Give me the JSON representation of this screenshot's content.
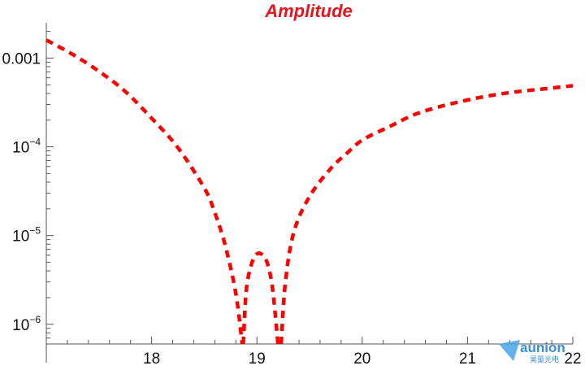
{
  "chart_data": {
    "type": "line",
    "title": "Amplitude",
    "xlabel": "",
    "ylabel": "",
    "yscale": "log",
    "xlim": [
      17.0,
      22.0
    ],
    "ylim": [
      6e-07,
      0.0025
    ],
    "x_ticks": [
      {
        "value": 18,
        "label": "18"
      },
      {
        "value": 19,
        "label": "19"
      },
      {
        "value": 20,
        "label": "20"
      },
      {
        "value": 21,
        "label": "21"
      },
      {
        "value": 22,
        "label": "22"
      }
    ],
    "y_ticks": [
      {
        "value": 0.001,
        "base": "0.001",
        "exp": ""
      },
      {
        "value": 0.0001,
        "base": "10",
        "exp": "−4"
      },
      {
        "value": 1e-05,
        "base": "10",
        "exp": "−5"
      },
      {
        "value": 1e-06,
        "base": "10",
        "exp": "−6"
      }
    ],
    "series": [
      {
        "name": "",
        "color": "#ff0000",
        "style": "dashed",
        "segments": [
          [
            [
              17.0,
              0.0016
            ],
            [
              17.25,
              0.0011
            ],
            [
              17.5,
              0.00071
            ],
            [
              17.75,
              0.00042
            ],
            [
              18.0,
              0.00021
            ],
            [
              18.25,
              9.75e-05
            ],
            [
              18.5,
              3.44e-05
            ],
            [
              18.6,
              1.81e-05
            ],
            [
              18.7,
              7.67e-06
            ],
            [
              18.8,
              2.22e-06
            ],
            [
              18.86,
              6e-07
            ]
          ],
          [
            [
              18.87,
              6e-07
            ],
            [
              18.9,
              2.46e-06
            ],
            [
              18.95,
              4.83e-06
            ],
            [
              19.0,
              6.2e-06
            ],
            [
              19.05,
              6.08e-06
            ],
            [
              19.1,
              4.83e-06
            ],
            [
              19.15,
              2.46e-06
            ],
            [
              19.2,
              6e-07
            ]
          ],
          [
            [
              19.23,
              6e-07
            ],
            [
              19.27,
              2.93e-06
            ],
            [
              19.35,
              1.09e-05
            ],
            [
              19.5,
              2.76e-05
            ],
            [
              19.7,
              5.68e-05
            ],
            [
              19.85,
              8.37e-05
            ],
            [
              20.0,
              0.000119
            ],
            [
              20.25,
              0.000167
            ],
            [
              20.5,
              0.000232
            ],
            [
              20.75,
              0.000286
            ],
            [
              21.0,
              0.000337
            ],
            [
              21.25,
              0.000384
            ],
            [
              21.5,
              0.000422
            ],
            [
              21.75,
              0.000453
            ],
            [
              22.0,
              0.000488
            ]
          ]
        ]
      }
    ],
    "grid": false,
    "legend": "none"
  },
  "watermark": {
    "brand": "aunion",
    "sub": "昊量光电"
  }
}
